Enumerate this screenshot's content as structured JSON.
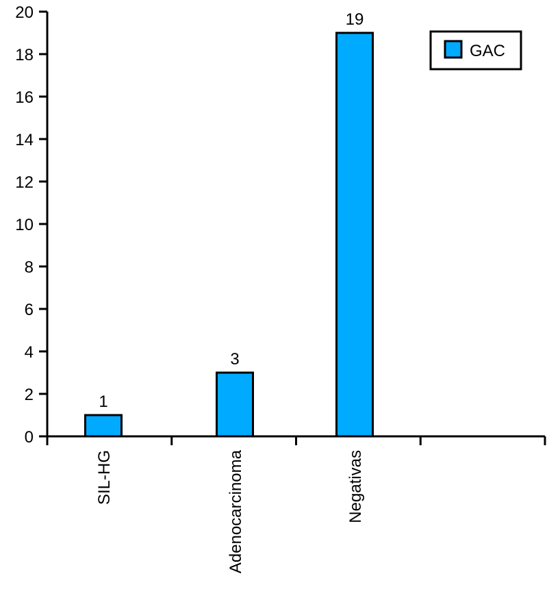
{
  "chart_data": {
    "type": "bar",
    "categories": [
      "SIL-HG",
      "Adenocarcinoma",
      "Negativas",
      ""
    ],
    "series": [
      {
        "name": "GAC",
        "values": [
          1,
          3,
          19,
          null
        ],
        "color": "#00aaff"
      }
    ],
    "data_labels": [
      "1",
      "3",
      "19",
      ""
    ],
    "yticks": [
      0,
      2,
      4,
      6,
      8,
      10,
      12,
      14,
      16,
      18,
      20
    ],
    "ylim": [
      0,
      20
    ],
    "title": "",
    "xlabel": "",
    "ylabel": "",
    "grid": false,
    "legend": {
      "entries": [
        "GAC"
      ],
      "position": "top-right"
    },
    "colors": {
      "bar_fill": "#00aaff",
      "outline": "#000000",
      "background": "#ffffff"
    }
  }
}
